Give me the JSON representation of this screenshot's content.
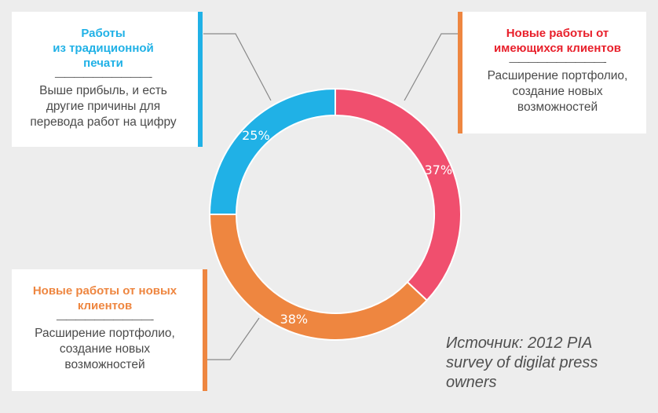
{
  "chart_data": {
    "type": "pie",
    "variant": "donut",
    "slices": [
      {
        "label": "Новые работы от имеющихся клиентов",
        "value": 37,
        "value_label": "37%",
        "color": "#f04f6e"
      },
      {
        "label": "Новые работы от новых клиентов",
        "value": 38,
        "value_label": "38%",
        "color": "#ee8640"
      },
      {
        "label": "Работы из традиционной печати",
        "value": 25,
        "value_label": "25%",
        "color": "#20b1e6"
      }
    ]
  },
  "callouts": {
    "top_left": {
      "title_lines": [
        "Работы",
        "из традиционной",
        "печати"
      ],
      "rule": "——————————-",
      "desc_lines": [
        "Выше прибыль, и есть",
        "другие причины для",
        "перевода работ на цифру"
      ]
    },
    "top_right": {
      "title_lines": [
        "Новые работы от",
        "имеющихся клиентов"
      ],
      "rule": "——————————-",
      "desc_lines": [
        "Расширение портфолио,",
        "создание новых",
        "возможностей"
      ]
    },
    "bottom_left": {
      "title_lines": [
        "Новые работы от новых",
        "клиентов"
      ],
      "rule": "——————————-",
      "desc_lines": [
        "Расширение портфолио,",
        "создание новых",
        "возможностей"
      ]
    }
  },
  "source_lines": [
    "Источник: 2012 PIA",
    "survey of digilat press",
    "owners"
  ],
  "colors": {
    "background": "#ededed",
    "blue": "#20b1e6",
    "orange": "#ee8640",
    "pink": "#f04f6e",
    "red_title": "#e8202b",
    "leader_line": "#888888"
  }
}
